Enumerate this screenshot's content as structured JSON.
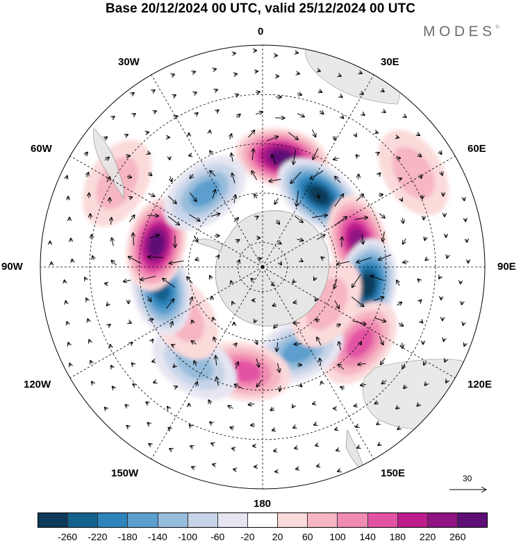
{
  "title": "Base 20/12/2024 00 UTC, valid 25/12/2024 00 UTC",
  "brand": "MODES",
  "brand_mark": "©",
  "longitude_labels": {
    "0": "0",
    "30E": "30E",
    "60E": "60E",
    "90E": "90E",
    "120E": "120E",
    "150E": "150E",
    "180": "180",
    "150W": "150W",
    "120W": "120W",
    "90W": "90W",
    "60W": "60W",
    "30W": "30W"
  },
  "reference_vector_label": "30",
  "colorbar": {
    "colors": [
      "#0d3a5a",
      "#14618e",
      "#2d84bb",
      "#5c9fce",
      "#96bcdc",
      "#c7d4e8",
      "#e6e6f2",
      "#ffffff",
      "#fbdada",
      "#f6b6c2",
      "#f08bb2",
      "#e353a3",
      "#be1d8c",
      "#8f1382",
      "#5d0f76"
    ],
    "ticks": [
      "-260",
      "-220",
      "-180",
      "-140",
      "-100",
      "-60",
      "-20",
      "20",
      "60",
      "100",
      "140",
      "180",
      "220",
      "260"
    ]
  },
  "anomalies": [
    {
      "lon": 10,
      "lat": -45,
      "value": 240
    },
    {
      "lon": 38,
      "lat": -53,
      "value": -260
    },
    {
      "lon": 75,
      "lat": -50,
      "value": 230
    },
    {
      "lon": 100,
      "lat": -47,
      "value": -250
    },
    {
      "lon": 128,
      "lat": -40,
      "value": 150
    },
    {
      "lon": 157,
      "lat": -53,
      "value": -120
    },
    {
      "lon": 190,
      "lat": -47,
      "value": 130
    },
    {
      "lon": 215,
      "lat": -42,
      "value": -80
    },
    {
      "lon": 238,
      "lat": -52,
      "value": 60
    },
    {
      "lon": 258,
      "lat": -48,
      "value": -220
    },
    {
      "lon": 282,
      "lat": -46,
      "value": 260
    },
    {
      "lon": 322,
      "lat": -52,
      "value": -150
    },
    {
      "lon": 300,
      "lat": -22,
      "value": 60
    },
    {
      "lon": 58,
      "lat": -18,
      "value": 40
    },
    {
      "lon": 120,
      "lat": -60,
      "value": 40
    }
  ]
}
